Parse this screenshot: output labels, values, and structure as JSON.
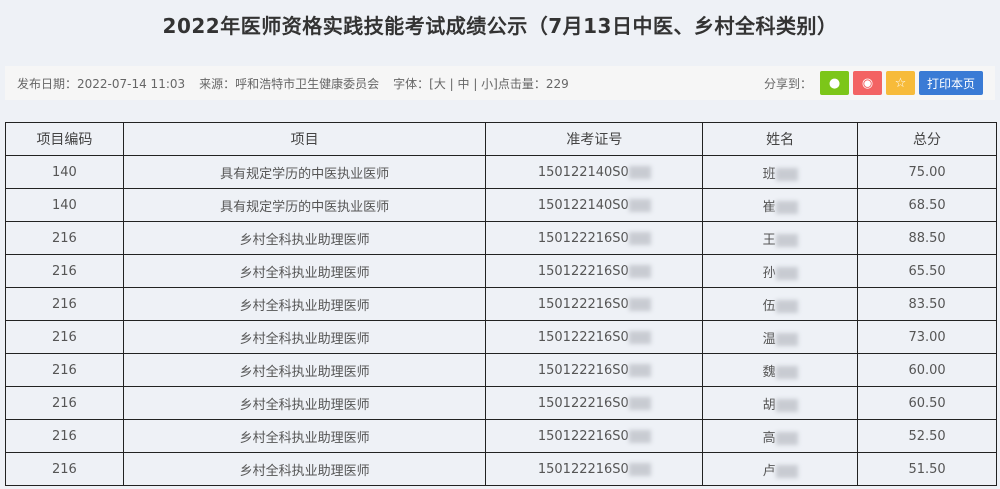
{
  "title": "2022年医师资格实践技能考试成绩公示（7月13日中医、乡村全科类别）",
  "meta": {
    "date": "发布日期：2022-07-14 11:03",
    "source": "来源：呼和浩特市卫生健康委员会",
    "font": "字体：[大 | 中 | 小]",
    "clicks": "点击量：229"
  },
  "share": {
    "label": "分享到：",
    "icons": [
      "wechat-icon",
      "weibo-icon",
      "star-icon"
    ],
    "colors": [
      "#7cc619",
      "#f36363",
      "#f7bb3a"
    ],
    "print": "打印本页"
  },
  "table": {
    "headers": [
      "项目编码",
      "项目",
      "准考证号",
      "姓名",
      "总分"
    ],
    "rows": [
      [
        "140",
        "具有规定学历的中医执业医师",
        "150122140S0",
        "班",
        "75.00"
      ],
      [
        "140",
        "具有规定学历的中医执业医师",
        "150122140S0",
        "崔",
        "68.50"
      ],
      [
        "216",
        "乡村全科执业助理医师",
        "150122216S0",
        "王",
        "88.50"
      ],
      [
        "216",
        "乡村全科执业助理医师",
        "150122216S0",
        "孙",
        "65.50"
      ],
      [
        "216",
        "乡村全科执业助理医师",
        "150122216S0",
        "伍",
        "83.50"
      ],
      [
        "216",
        "乡村全科执业助理医师",
        "150122216S0",
        "温",
        "73.00"
      ],
      [
        "216",
        "乡村全科执业助理医师",
        "150122216S0",
        "魏",
        "60.00"
      ],
      [
        "216",
        "乡村全科执业助理医师",
        "150122216S0",
        "胡",
        "60.50"
      ],
      [
        "216",
        "乡村全科执业助理医师",
        "150122216S0",
        "高",
        "52.50"
      ],
      [
        "216",
        "乡村全科执业助理医师",
        "150122216S0",
        "卢",
        "51.50"
      ]
    ]
  }
}
